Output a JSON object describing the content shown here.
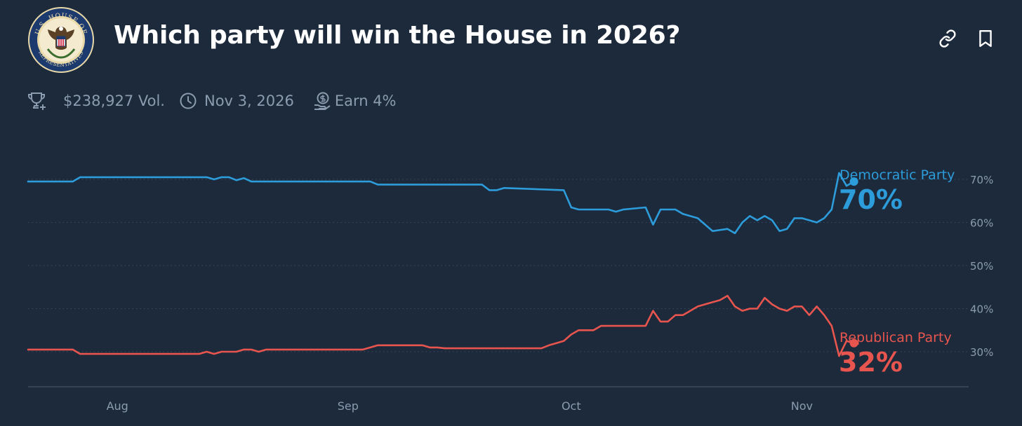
{
  "header": {
    "title": "Which party will win the House in 2026?",
    "seal_text_top": "U.S. HOUSE OF",
    "seal_text_bottom": "REPRESENTATIVES",
    "link_icon": "link-icon",
    "bookmark_icon": "bookmark-icon"
  },
  "meta": {
    "volume": "$238,927 Vol.",
    "end_date": "Nov 3, 2026",
    "reward": "Earn 4%",
    "icons": [
      "trophy-plus-icon",
      "clock-icon",
      "coin-hand-icon"
    ]
  },
  "colors": {
    "background": "#1d2a3b",
    "democratic": "#2d9cdb",
    "republican": "#e8554e",
    "grid": "#3a4b61",
    "axis_text": "#8b9bb0"
  },
  "chart_data": {
    "type": "line",
    "x_labels": [
      "Aug",
      "Sep",
      "Oct",
      "Nov"
    ],
    "y_ticks": [
      30,
      40,
      50,
      60,
      70
    ],
    "y_tick_labels": [
      "30%",
      "40%",
      "50%",
      "60%",
      "70%"
    ],
    "ylim": [
      22,
      76
    ],
    "xlim": [
      "2025-07-20",
      "2025-11-30"
    ],
    "grid": "horizontal dotted",
    "legend": "end-of-line labels on the right",
    "series": [
      {
        "name": "Democratic Party",
        "current_label": "70%",
        "color": "#2d9cdb",
        "points": [
          [
            "2025-07-20",
            69.5
          ],
          [
            "2025-07-26",
            69.5
          ],
          [
            "2025-07-27",
            70.5
          ],
          [
            "2025-08-13",
            70.5
          ],
          [
            "2025-08-14",
            70
          ],
          [
            "2025-08-15",
            70.5
          ],
          [
            "2025-08-16",
            70.5
          ],
          [
            "2025-08-17",
            69.8
          ],
          [
            "2025-08-18",
            70.3
          ],
          [
            "2025-08-19",
            69.5
          ],
          [
            "2025-09-04",
            69.5
          ],
          [
            "2025-09-05",
            68.8
          ],
          [
            "2025-09-19",
            68.8
          ],
          [
            "2025-09-20",
            67.5
          ],
          [
            "2025-09-21",
            67.5
          ],
          [
            "2025-09-22",
            68
          ],
          [
            "2025-09-30",
            67.5
          ],
          [
            "2025-10-01",
            63.5
          ],
          [
            "2025-10-02",
            63
          ],
          [
            "2025-10-06",
            63
          ],
          [
            "2025-10-07",
            62.5
          ],
          [
            "2025-10-08",
            63
          ],
          [
            "2025-10-11",
            63.5
          ],
          [
            "2025-10-12",
            59.5
          ],
          [
            "2025-10-13",
            63
          ],
          [
            "2025-10-15",
            63
          ],
          [
            "2025-10-16",
            62
          ],
          [
            "2025-10-18",
            61
          ],
          [
            "2025-10-19",
            59.5
          ],
          [
            "2025-10-20",
            58
          ],
          [
            "2025-10-22",
            58.5
          ],
          [
            "2025-10-23",
            57.5
          ],
          [
            "2025-10-24",
            60
          ],
          [
            "2025-10-25",
            61.5
          ],
          [
            "2025-10-26",
            60.5
          ],
          [
            "2025-10-27",
            61.5
          ],
          [
            "2025-10-28",
            60.5
          ],
          [
            "2025-10-29",
            58
          ],
          [
            "2025-10-30",
            58.5
          ],
          [
            "2025-10-31",
            61
          ],
          [
            "2025-11-01",
            61
          ],
          [
            "2025-11-02",
            60.5
          ],
          [
            "2025-11-03",
            60
          ],
          [
            "2025-11-04",
            61
          ],
          [
            "2025-11-05",
            63
          ],
          [
            "2025-11-06",
            71.5
          ],
          [
            "2025-11-07",
            68.5
          ],
          [
            "2025-11-08",
            69.5
          ]
        ]
      },
      {
        "name": "Republican Party",
        "current_label": "32%",
        "color": "#e8554e",
        "points": [
          [
            "2025-07-20",
            30.5
          ],
          [
            "2025-07-26",
            30.5
          ],
          [
            "2025-07-27",
            29.5
          ],
          [
            "2025-08-12",
            29.5
          ],
          [
            "2025-08-13",
            30
          ],
          [
            "2025-08-14",
            29.5
          ],
          [
            "2025-08-15",
            30
          ],
          [
            "2025-08-17",
            30
          ],
          [
            "2025-08-18",
            30.5
          ],
          [
            "2025-08-19",
            30.5
          ],
          [
            "2025-08-20",
            30
          ],
          [
            "2025-08-21",
            30.5
          ],
          [
            "2025-09-03",
            30.5
          ],
          [
            "2025-09-04",
            31
          ],
          [
            "2025-09-05",
            31.5
          ],
          [
            "2025-09-11",
            31.5
          ],
          [
            "2025-09-12",
            31
          ],
          [
            "2025-09-13",
            31
          ],
          [
            "2025-09-14",
            30.8
          ],
          [
            "2025-09-27",
            30.8
          ],
          [
            "2025-09-28",
            31.5
          ],
          [
            "2025-09-29",
            32
          ],
          [
            "2025-09-30",
            32.5
          ],
          [
            "2025-10-01",
            34
          ],
          [
            "2025-10-02",
            35
          ],
          [
            "2025-10-04",
            35
          ],
          [
            "2025-10-05",
            36
          ],
          [
            "2025-10-11",
            36
          ],
          [
            "2025-10-12",
            39.5
          ],
          [
            "2025-10-13",
            37
          ],
          [
            "2025-10-14",
            37
          ],
          [
            "2025-10-15",
            38.5
          ],
          [
            "2025-10-16",
            38.5
          ],
          [
            "2025-10-17",
            39.5
          ],
          [
            "2025-10-18",
            40.5
          ],
          [
            "2025-10-20",
            41.5
          ],
          [
            "2025-10-21",
            42
          ],
          [
            "2025-10-22",
            43
          ],
          [
            "2025-10-23",
            40.5
          ],
          [
            "2025-10-24",
            39.5
          ],
          [
            "2025-10-25",
            40
          ],
          [
            "2025-10-26",
            40
          ],
          [
            "2025-10-27",
            42.5
          ],
          [
            "2025-10-28",
            41
          ],
          [
            "2025-10-29",
            40
          ],
          [
            "2025-10-30",
            39.5
          ],
          [
            "2025-10-31",
            40.5
          ],
          [
            "2025-11-01",
            40.5
          ],
          [
            "2025-11-02",
            38.5
          ],
          [
            "2025-11-03",
            40.5
          ],
          [
            "2025-11-04",
            38.5
          ],
          [
            "2025-11-05",
            36
          ],
          [
            "2025-11-06",
            29
          ],
          [
            "2025-11-07",
            32.5
          ],
          [
            "2025-11-08",
            32
          ]
        ]
      }
    ]
  }
}
